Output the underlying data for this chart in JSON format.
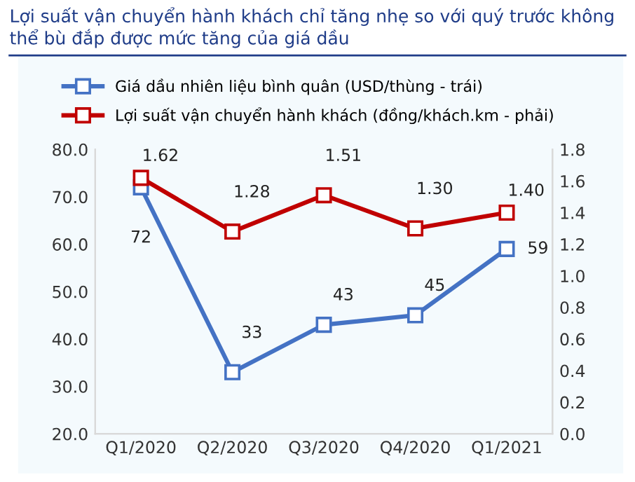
{
  "chart_data": {
    "type": "line",
    "title": "Lợi suất vận chuyển hành khách chỉ tăng nhẹ so với quý trước không thể bù đắp được mức tăng của giá dầu",
    "categories": [
      "Q1/2020",
      "Q2/2020",
      "Q3/2020",
      "Q4/2020",
      "Q1/2021"
    ],
    "series": [
      {
        "name": "Giá dầu nhiên liệu bình quân (USD/thùng - trái)",
        "color": "#4472c4",
        "values": [
          72,
          33,
          43,
          45,
          59
        ]
      },
      {
        "name": "Lợi suất vận chuyển hành khách (đồng/khách.km - phải)",
        "color": "#c00000",
        "values": [
          1.62,
          1.28,
          1.51,
          1.3,
          1.4
        ],
        "axis": "y2",
        "value_labels": [
          "1.62",
          "1.28",
          "1.51",
          "1.30",
          "1.40"
        ]
      }
    ],
    "ylim": [
      20,
      80
    ],
    "yticks": [
      {
        "value": 20,
        "label": "20.0"
      },
      {
        "value": 30,
        "label": "30.0"
      },
      {
        "value": 40,
        "label": "40.0"
      },
      {
        "value": 50,
        "label": "50.0"
      },
      {
        "value": 60,
        "label": "60.0"
      },
      {
        "value": 70,
        "label": "70.0"
      },
      {
        "value": 80,
        "label": "80.0"
      }
    ],
    "y2lim": [
      0,
      1.8
    ],
    "y2ticks": [
      {
        "value": 0,
        "label": "0.0"
      },
      {
        "value": 0.2,
        "label": "0.2"
      },
      {
        "value": 0.4,
        "label": "0.4"
      },
      {
        "value": 0.6,
        "label": "0.6"
      },
      {
        "value": 0.8,
        "label": "0.8"
      },
      {
        "value": 1.0,
        "label": "1.0"
      },
      {
        "value": 1.2,
        "label": "1.2"
      },
      {
        "value": 1.4,
        "label": "1.4"
      },
      {
        "value": 1.6,
        "label": "1.6"
      },
      {
        "value": 1.8,
        "label": "1.8"
      }
    ],
    "data_labels": true,
    "marker": "square",
    "line_style": "solid",
    "legend": "top",
    "grid": false
  }
}
